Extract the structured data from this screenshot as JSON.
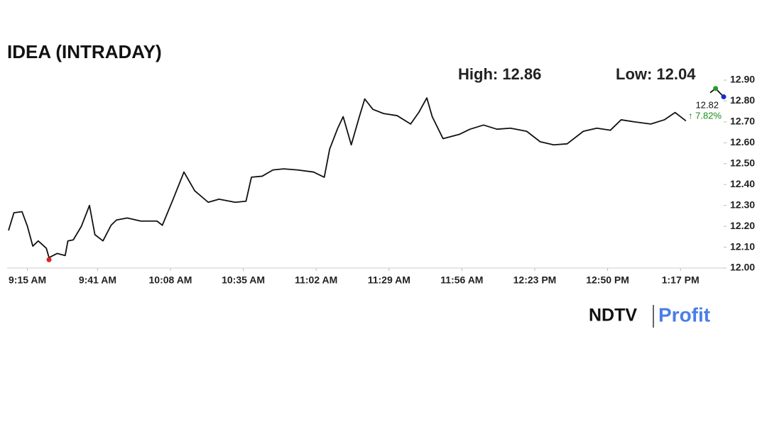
{
  "chart_data": {
    "type": "line",
    "title": "IDEA (INTRADAY)",
    "high_label": "High: 12.86",
    "low_label": "Low: 12.04",
    "x": [
      "9:08 AM",
      "9:10 AM",
      "9:13 AM",
      "9:15 AM",
      "9:17 AM",
      "9:19 AM",
      "9:22 AM",
      "9:23 AM",
      "9:26 AM",
      "9:29 AM",
      "9:30 AM",
      "9:32 AM",
      "9:35 AM",
      "9:38 AM",
      "9:40 AM",
      "9:43 AM",
      "9:46 AM",
      "9:48 AM",
      "9:52 AM",
      "9:57 AM",
      "10:03 AM",
      "10:05 AM",
      "10:09 AM",
      "10:13 AM",
      "10:17 AM",
      "10:22 AM",
      "10:26 AM",
      "10:32 AM",
      "10:36 AM",
      "10:38 AM",
      "10:42 AM",
      "10:46 AM",
      "10:50 AM",
      "10:55 AM",
      "11:01 AM",
      "11:05 AM",
      "11:07 AM",
      "11:10 AM",
      "11:12 AM",
      "11:15 AM",
      "11:18 AM",
      "11:20 AM",
      "11:23 AM",
      "11:27 AM",
      "11:32 AM",
      "11:37 AM",
      "11:40 AM",
      "11:43 AM",
      "11:45 AM",
      "11:49 AM",
      "11:55 AM",
      "11:59 AM",
      "12:04 PM",
      "12:09 PM",
      "12:14 PM",
      "12:20 PM",
      "12:25 PM",
      "12:30 PM",
      "12:35 PM",
      "12:41 PM",
      "12:46 PM",
      "12:51 PM",
      "12:55 PM",
      "1:00 PM",
      "1:06 PM",
      "1:11 PM",
      "1:15 PM",
      "1:17 PM",
      "1:19 PM",
      "1:25 PM",
      "1:28 PM",
      "1:30 PM",
      "1:33 PM"
    ],
    "series": [
      {
        "name": "IDEA",
        "color": "#111111",
        "values": [
          12.18,
          12.265,
          12.27,
          12.2,
          12.105,
          12.13,
          12.095,
          12.05,
          12.07,
          12.06,
          12.13,
          12.135,
          12.2,
          12.3,
          12.16,
          12.13,
          12.205,
          12.23,
          12.24,
          12.225,
          12.225,
          12.205,
          12.33,
          12.46,
          12.37,
          12.315,
          12.33,
          12.315,
          12.32,
          12.435,
          12.44,
          12.47,
          12.475,
          12.47,
          12.46,
          12.435,
          12.57,
          12.67,
          12.725,
          12.59,
          12.725,
          12.81,
          12.76,
          12.74,
          12.73,
          12.69,
          12.745,
          12.815,
          12.725,
          12.62,
          12.64,
          12.665,
          12.685,
          12.665,
          12.67,
          12.655,
          12.605,
          12.59,
          12.595,
          12.655,
          12.67,
          12.66,
          12.71,
          12.7,
          12.69,
          12.71,
          12.745,
          12.725,
          12.705,
          null,
          12.84,
          12.86,
          12.82
        ]
      }
    ],
    "markers": [
      {
        "x": "9:23 AM",
        "value": 12.04,
        "color": "#e02020"
      },
      {
        "x": "1:30 PM",
        "value": 12.86,
        "color": "#2a9a2a"
      },
      {
        "x": "1:33 PM",
        "value": 12.82,
        "color": "#1a2ad0"
      }
    ],
    "last_label": "12.82",
    "change_label": "↑ 7.82%",
    "change_color": "#1a8a1a",
    "xlim": [
      "9:08 AM",
      "1:33 PM"
    ],
    "xticks": [
      "9:15 AM",
      "9:41 AM",
      "10:08 AM",
      "10:35 AM",
      "11:02 AM",
      "11:29 AM",
      "11:56 AM",
      "12:23 PM",
      "12:50 PM",
      "1:17 PM"
    ],
    "ylim": [
      12.0,
      12.9
    ],
    "yticks": [
      {
        "value": 12.0,
        "label": "12.00"
      },
      {
        "value": 12.1,
        "label": "12.10"
      },
      {
        "value": 12.2,
        "label": "12.20"
      },
      {
        "value": 12.3,
        "label": "12.30"
      },
      {
        "value": 12.4,
        "label": "12.40"
      },
      {
        "value": 12.5,
        "label": "12.50"
      },
      {
        "value": 12.6,
        "label": "12.60"
      },
      {
        "value": 12.7,
        "label": "12.70"
      },
      {
        "value": 12.8,
        "label": "12.80"
      },
      {
        "value": 12.9,
        "label": "12.90"
      }
    ]
  },
  "logo": {
    "brand": "NDTV",
    "product": "Profit"
  }
}
